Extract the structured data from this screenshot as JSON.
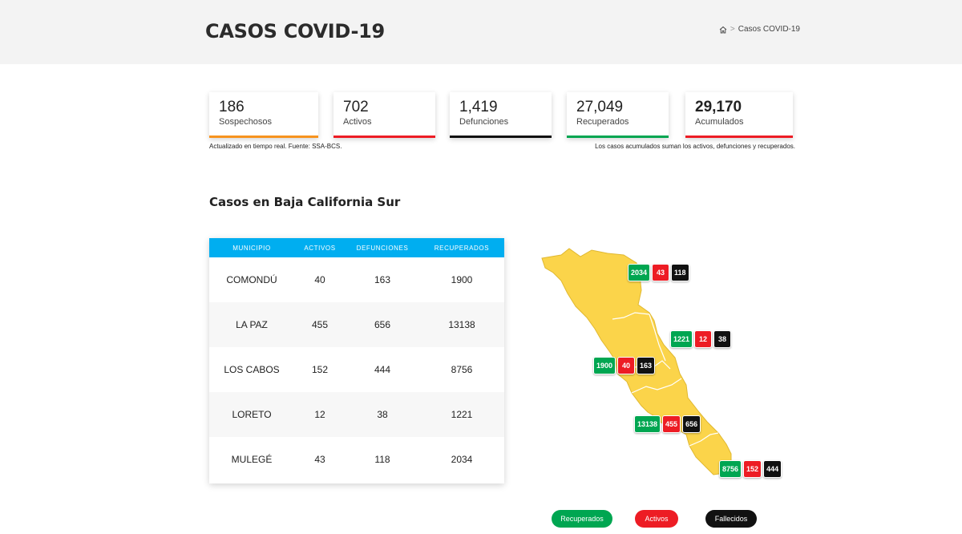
{
  "header": {
    "title": "CASOS COVID-19",
    "breadcrumb_current": "Casos COVID-19",
    "breadcrumb_sep": ">"
  },
  "summary": {
    "cards": [
      {
        "value": "186",
        "label": "Sospechosos",
        "color": "#f7931e"
      },
      {
        "value": "702",
        "label": "Activos",
        "color": "#ed1c24"
      },
      {
        "value": "1,419",
        "label": "Defunciones",
        "color": "#111111"
      },
      {
        "value": "27,049",
        "label": "Recuperados",
        "color": "#00a651"
      },
      {
        "value": "29,170",
        "label": "Acumulados",
        "color": "#ed1c24"
      }
    ],
    "note_left": "Actualizado en tiempo real. Fuente: SSA-BCS.",
    "note_right": "Los casos acumulados suman los activos, defunciones y recuperados."
  },
  "section": {
    "title": "Casos en Baja California Sur"
  },
  "table": {
    "headers": [
      "MUNICIPIO",
      "ACTIVOS",
      "DEFUNCIONES",
      "RECUPERADOS"
    ],
    "header_color": "#00aef0",
    "rows": [
      [
        "COMONDÚ",
        "40",
        "163",
        "1900"
      ],
      [
        "LA PAZ",
        "455",
        "656",
        "13138"
      ],
      [
        "LOS CABOS",
        "152",
        "444",
        "8756"
      ],
      [
        "LORETO",
        "12",
        "38",
        "1221"
      ],
      [
        "MULEGÉ",
        "43",
        "118",
        "2034"
      ]
    ]
  },
  "map": {
    "fill_color": "#fbd44a",
    "badges": [
      {
        "recuperados": "2034",
        "activos": "43",
        "fallecidos": "118"
      },
      {
        "recuperados": "1221",
        "activos": "12",
        "fallecidos": "38"
      },
      {
        "recuperados": "1900",
        "activos": "40",
        "fallecidos": "163"
      },
      {
        "recuperados": "13138",
        "activos": "455",
        "fallecidos": "656"
      },
      {
        "recuperados": "8756",
        "activos": "152",
        "fallecidos": "444"
      }
    ]
  },
  "legend": {
    "recuperados": "Recuperados",
    "activos": "Activos",
    "fallecidos": "Fallecidos"
  },
  "colors": {
    "green": "#00a651",
    "red": "#ed1c24",
    "black": "#111111"
  }
}
